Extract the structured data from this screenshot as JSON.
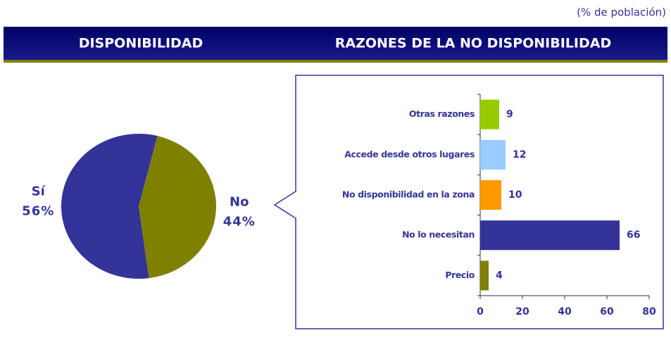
{
  "note": "(% de población)",
  "chart_data": [
    {
      "type": "pie",
      "title": "DISPONIBILIDAD",
      "categories": [
        "Sí",
        "No"
      ],
      "values": [
        56,
        44
      ],
      "value_labels": [
        "56%",
        "44%"
      ],
      "colors": [
        "#333399",
        "#808000"
      ]
    },
    {
      "type": "hbar",
      "title": "RAZONES DE LA NO DISPONIBILIDAD",
      "categories": [
        "Precio",
        "No lo necesitan",
        "No disponibilidad en la zona",
        "Accede desde otros lugares",
        "Otras razones"
      ],
      "values": [
        4,
        66,
        10,
        12,
        9
      ],
      "colors": [
        "#808000",
        "#333399",
        "#FF9900",
        "#99CCFF",
        "#99CC00"
      ],
      "xlim": [
        0,
        80
      ],
      "xticks": [
        0,
        20,
        40,
        60,
        80
      ]
    }
  ]
}
